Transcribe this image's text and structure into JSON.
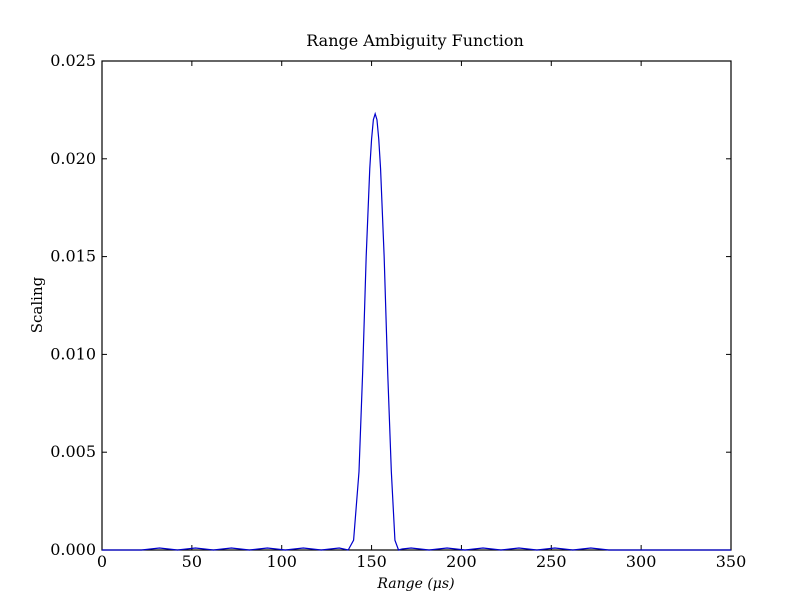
{
  "chart_data": {
    "type": "line",
    "title": "Range Ambiguity Function",
    "xlabel": "Range (μs)",
    "ylabel": "Scaling",
    "xlim": [
      0,
      350
    ],
    "ylim": [
      0,
      0.025
    ],
    "xticks": [
      0,
      50,
      100,
      150,
      200,
      250,
      300,
      350
    ],
    "xtick_labels": [
      "0",
      "50",
      "100",
      "150",
      "200",
      "250",
      "300",
      "350"
    ],
    "yticks": [
      0.0,
      0.005,
      0.01,
      0.015,
      0.02,
      0.025
    ],
    "ytick_labels": [
      "0.000",
      "0.005",
      "0.010",
      "0.015",
      "0.020",
      "0.025"
    ],
    "grid": false,
    "line_color": "#0000cc",
    "series": [
      {
        "x": [
          0,
          22,
          27,
          32,
          37,
          42,
          47,
          52,
          57,
          62,
          67,
          72,
          77,
          82,
          87,
          92,
          97,
          102,
          107,
          112,
          117,
          122,
          127,
          132,
          137,
          140,
          143,
          145,
          147,
          149,
          150,
          151,
          152,
          153,
          154,
          155,
          157,
          159,
          161,
          163,
          165,
          167,
          172,
          177,
          182,
          187,
          192,
          197,
          202,
          207,
          212,
          217,
          222,
          227,
          232,
          237,
          242,
          247,
          252,
          257,
          262,
          267,
          272,
          277,
          282,
          350
        ],
        "y": [
          0,
          0,
          5e-05,
          0.0001,
          5e-05,
          0,
          5e-05,
          0.0001,
          5e-05,
          0,
          5e-05,
          0.0001,
          5e-05,
          0,
          5e-05,
          0.0001,
          5e-05,
          0,
          5e-05,
          0.0001,
          5e-05,
          0,
          5e-05,
          0.0001,
          0,
          0.0005,
          0.004,
          0.009,
          0.015,
          0.0195,
          0.021,
          0.022,
          0.0223,
          0.022,
          0.021,
          0.0195,
          0.015,
          0.009,
          0.004,
          0.0005,
          0,
          5e-05,
          0.0001,
          5e-05,
          0,
          5e-05,
          0.0001,
          5e-05,
          0,
          5e-05,
          0.0001,
          5e-05,
          0,
          5e-05,
          0.0001,
          5e-05,
          0,
          5e-05,
          0.0001,
          5e-05,
          0,
          5e-05,
          0.0001,
          5e-05,
          0,
          0
        ]
      }
    ]
  }
}
